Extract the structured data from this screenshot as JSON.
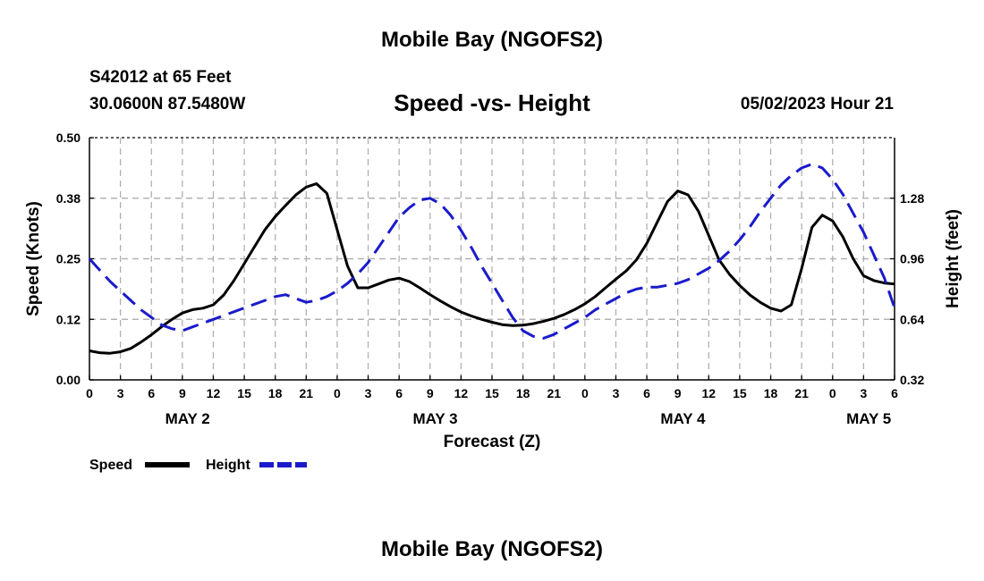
{
  "title_top": "Mobile Bay (NGOFS2)",
  "title_bottom": "Mobile Bay (NGOFS2)",
  "station": "S42012 at 65 Feet",
  "coords": "30.0600N  87.5480W",
  "run_time": "05/02/2023 Hour 21",
  "colors": {
    "speed": "#000000",
    "height": "#1a1acc",
    "grid": "#b0b0b0"
  },
  "chart_data": {
    "type": "line",
    "title": "Speed -vs- Height",
    "xlabel": "Forecast (Z)",
    "ylabel_left": "Speed (Knots)",
    "ylabel_right": "Height (feet)",
    "xlim": [
      0,
      78
    ],
    "ylim_left": [
      0,
      0.5
    ],
    "ylim_right": [
      0.32,
      1.6
    ],
    "x_tick_hours": [
      0,
      3,
      6,
      9,
      12,
      15,
      18,
      21,
      24,
      27,
      30,
      33,
      36,
      39,
      42,
      45,
      48,
      51,
      54,
      57,
      60,
      63,
      66,
      69,
      72,
      75,
      78
    ],
    "x_tick_labels": [
      "0",
      "3",
      "6",
      "9",
      "12",
      "15",
      "18",
      "21",
      "0",
      "3",
      "6",
      "9",
      "12",
      "15",
      "18",
      "21",
      "0",
      "3",
      "6",
      "9",
      "12",
      "15",
      "18",
      "21",
      "0",
      "3",
      "6"
    ],
    "day_labels": [
      {
        "label": "MAY 2",
        "hour": 9.5
      },
      {
        "label": "MAY 3",
        "hour": 33.5
      },
      {
        "label": "MAY 4",
        "hour": 57.5
      },
      {
        "label": "MAY 5",
        "hour": 75.5
      }
    ],
    "left_ticks": [
      {
        "value": 0.0,
        "label": "0.00"
      },
      {
        "value": 0.125,
        "label": "0.12"
      },
      {
        "value": 0.25,
        "label": "0.25"
      },
      {
        "value": 0.375,
        "label": "0.38"
      },
      {
        "value": 0.5,
        "label": "0.50"
      }
    ],
    "right_ticks": [
      {
        "value": 0.32,
        "label": "0.32"
      },
      {
        "value": 0.64,
        "label": "0.64"
      },
      {
        "value": 0.96,
        "label": "0.96"
      },
      {
        "value": 1.28,
        "label": "1.28"
      }
    ],
    "series": [
      {
        "name": "Speed",
        "axis": "left",
        "style": "solid",
        "x": [
          0,
          1,
          2,
          3,
          4,
          5,
          6,
          7,
          8,
          9,
          10,
          11,
          12,
          13,
          14,
          15,
          16,
          17,
          18,
          19,
          20,
          21,
          22,
          23,
          24,
          25,
          26,
          27,
          28,
          29,
          30,
          31,
          32,
          33,
          34,
          35,
          36,
          37,
          38,
          39,
          40,
          41,
          42,
          43,
          44,
          45,
          46,
          47,
          48,
          49,
          50,
          51,
          52,
          53,
          54,
          55,
          56,
          57,
          58,
          59,
          60,
          61,
          62,
          63,
          64,
          65,
          66,
          67,
          68,
          69,
          70,
          71,
          72,
          73,
          74,
          75,
          76,
          77,
          78
        ],
        "values": [
          0.06,
          0.056,
          0.055,
          0.058,
          0.065,
          0.078,
          0.093,
          0.11,
          0.125,
          0.138,
          0.145,
          0.148,
          0.155,
          0.175,
          0.205,
          0.24,
          0.275,
          0.31,
          0.337,
          0.36,
          0.382,
          0.398,
          0.405,
          0.385,
          0.31,
          0.235,
          0.19,
          0.19,
          0.198,
          0.206,
          0.21,
          0.203,
          0.19,
          0.176,
          0.163,
          0.151,
          0.14,
          0.132,
          0.125,
          0.119,
          0.114,
          0.112,
          0.113,
          0.116,
          0.121,
          0.127,
          0.135,
          0.145,
          0.157,
          0.172,
          0.19,
          0.208,
          0.225,
          0.248,
          0.282,
          0.325,
          0.368,
          0.39,
          0.382,
          0.348,
          0.298,
          0.248,
          0.218,
          0.195,
          0.175,
          0.16,
          0.148,
          0.142,
          0.155,
          0.23,
          0.315,
          0.34,
          0.328,
          0.295,
          0.25,
          0.215,
          0.205,
          0.2,
          0.198
        ]
      },
      {
        "name": "Height",
        "axis": "right",
        "style": "dashed",
        "x": [
          0,
          1,
          2,
          3,
          4,
          5,
          6,
          7,
          8,
          9,
          10,
          11,
          12,
          13,
          14,
          15,
          16,
          17,
          18,
          19,
          20,
          21,
          22,
          23,
          24,
          25,
          26,
          27,
          28,
          29,
          30,
          31,
          32,
          33,
          34,
          35,
          36,
          37,
          38,
          39,
          40,
          41,
          42,
          43,
          44,
          45,
          46,
          47,
          48,
          49,
          50,
          51,
          52,
          53,
          54,
          55,
          56,
          57,
          58,
          59,
          60,
          61,
          62,
          63,
          64,
          65,
          66,
          67,
          68,
          69,
          70,
          71,
          72,
          73,
          74,
          75,
          76,
          77,
          78
        ],
        "values": [
          0.96,
          0.9,
          0.84,
          0.79,
          0.74,
          0.69,
          0.65,
          0.61,
          0.59,
          0.58,
          0.6,
          0.62,
          0.64,
          0.66,
          0.68,
          0.7,
          0.72,
          0.74,
          0.76,
          0.77,
          0.75,
          0.73,
          0.74,
          0.76,
          0.79,
          0.83,
          0.88,
          0.94,
          1.02,
          1.1,
          1.18,
          1.23,
          1.27,
          1.28,
          1.25,
          1.19,
          1.11,
          1.02,
          0.92,
          0.83,
          0.74,
          0.65,
          0.58,
          0.55,
          0.54,
          0.56,
          0.59,
          0.62,
          0.65,
          0.69,
          0.72,
          0.75,
          0.78,
          0.8,
          0.81,
          0.81,
          0.82,
          0.83,
          0.85,
          0.88,
          0.91,
          0.95,
          1.0,
          1.06,
          1.13,
          1.21,
          1.28,
          1.35,
          1.4,
          1.44,
          1.46,
          1.44,
          1.38,
          1.3,
          1.2,
          1.1,
          0.98,
          0.86,
          0.7
        ]
      }
    ],
    "legend": [
      {
        "label": "Speed",
        "style": "solid"
      },
      {
        "label": "Height",
        "style": "dashed"
      }
    ],
    "grid": true
  }
}
